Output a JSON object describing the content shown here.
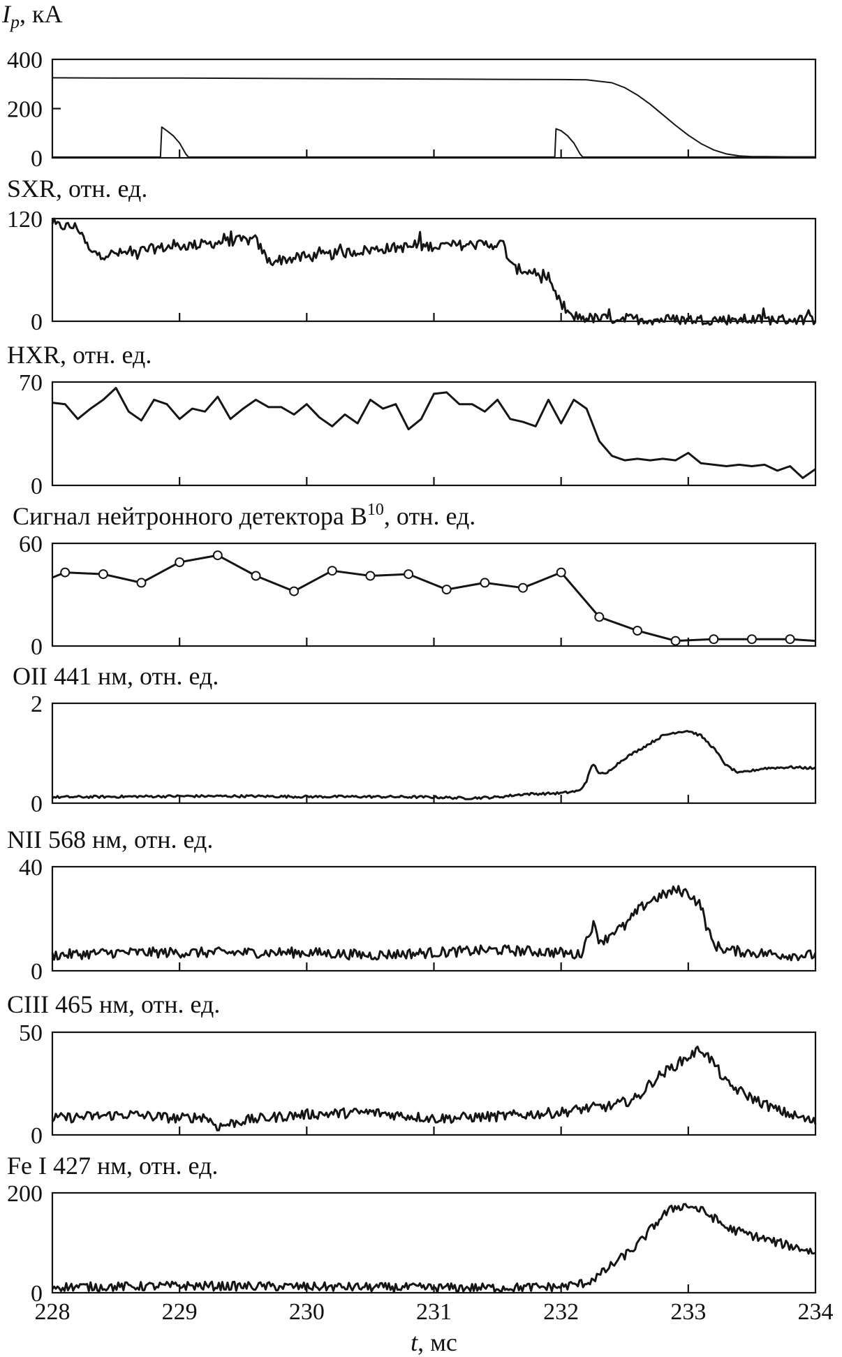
{
  "chart_data": [
    {
      "type": "line",
      "ylabel": "I",
      "ylabel_sub": "p",
      "ylabel_rest": ", кА",
      "ylim": [
        0,
        400
      ],
      "yticks": [
        "0",
        "200",
        "400"
      ],
      "xlim": [
        228,
        234
      ],
      "series": [
        {
          "x": [
            228.0,
            228.5,
            229.0,
            229.5,
            230.0,
            230.5,
            231.0,
            231.5,
            232.0,
            232.2,
            232.4,
            232.5,
            232.6,
            232.7,
            232.8,
            232.9,
            233.0,
            233.1,
            233.2,
            233.3,
            233.4,
            233.5,
            233.6,
            233.8,
            234.0
          ],
          "values": [
            325,
            324,
            324,
            323,
            322,
            321,
            320,
            319,
            318,
            317,
            305,
            285,
            255,
            218,
            175,
            132,
            92,
            58,
            32,
            16,
            8,
            5,
            5,
            4,
            4
          ]
        },
        {
          "x": [
            228.0,
            228.85,
            228.86,
            228.9,
            228.95,
            229.0,
            229.05,
            229.07,
            231.95,
            231.96,
            232.0,
            232.05,
            232.1,
            232.15,
            232.17,
            234.0
          ],
          "values": [
            3,
            3,
            125,
            110,
            90,
            60,
            15,
            3,
            3,
            118,
            110,
            90,
            60,
            15,
            3,
            3
          ]
        }
      ]
    },
    {
      "type": "line",
      "ylabel": "SXR, отн. ед.",
      "ylim": [
        0,
        120
      ],
      "yticks": [
        "0",
        "120"
      ],
      "xlim": [
        228,
        234
      ],
      "series": [
        {
          "x": [
            228.0,
            228.1,
            228.2,
            228.25,
            228.3,
            228.4,
            228.6,
            228.8,
            229.0,
            229.2,
            229.4,
            229.6,
            229.65,
            229.7,
            229.8,
            230.0,
            230.2,
            230.4,
            230.6,
            230.8,
            231.0,
            231.2,
            231.4,
            231.55,
            231.58,
            231.62,
            231.7,
            231.8,
            231.9,
            231.95,
            232.0,
            232.05,
            232.1,
            232.2,
            232.3,
            232.5,
            232.7,
            233.0,
            233.3,
            233.6,
            234.0
          ],
          "values": [
            112,
            111,
            110,
            95,
            80,
            78,
            80,
            85,
            88,
            90,
            94,
            95,
            82,
            70,
            72,
            75,
            78,
            82,
            85,
            87,
            88,
            89,
            90,
            90,
            75,
            62,
            60,
            56,
            45,
            32,
            20,
            8,
            6,
            4,
            3,
            3,
            2,
            2,
            2,
            2,
            2
          ]
        }
      ]
    },
    {
      "type": "line",
      "ylabel": "HXR, отн. ед.",
      "ylim": [
        0,
        70
      ],
      "yticks": [
        "0",
        "70"
      ],
      "xlim": [
        228,
        234
      ],
      "series": [
        {
          "x": [
            228.0,
            228.1,
            228.2,
            228.3,
            228.4,
            228.5,
            228.6,
            228.7,
            228.8,
            228.9,
            229.0,
            229.1,
            229.2,
            229.3,
            229.4,
            229.5,
            229.6,
            229.7,
            229.8,
            229.9,
            230.0,
            230.1,
            230.2,
            230.3,
            230.4,
            230.5,
            230.6,
            230.7,
            230.8,
            230.9,
            231.0,
            231.1,
            231.2,
            231.3,
            231.4,
            231.5,
            231.6,
            231.7,
            231.8,
            231.9,
            232.0,
            232.1,
            232.2,
            232.3,
            232.4,
            232.5,
            232.6,
            232.7,
            232.8,
            232.9,
            233.0,
            233.1,
            233.2,
            233.3,
            233.4,
            233.5,
            233.6,
            233.7,
            233.8,
            233.9,
            234.0
          ],
          "values": [
            56,
            55,
            45,
            52,
            58,
            66,
            50,
            44,
            58,
            55,
            45,
            52,
            50,
            60,
            45,
            52,
            58,
            53,
            53,
            48,
            55,
            46,
            40,
            48,
            42,
            58,
            52,
            55,
            38,
            45,
            62,
            63,
            55,
            55,
            50,
            58,
            45,
            43,
            40,
            58,
            42,
            58,
            52,
            30,
            20,
            17,
            18,
            17,
            18,
            17,
            22,
            15,
            14,
            13,
            14,
            13,
            14,
            10,
            13,
            5,
            11
          ]
        }
      ]
    },
    {
      "type": "line",
      "ylabel": "Сигнал нейтронного детектора B",
      "ylabel_sup": "10",
      "ylabel_rest": ", отн. ед.",
      "ylim": [
        0,
        60
      ],
      "yticks": [
        "0",
        "60"
      ],
      "xlim": [
        228,
        234
      ],
      "series": [
        {
          "x": [
            228.0,
            228.1,
            228.4,
            228.7,
            229.0,
            229.3,
            229.6,
            229.9,
            230.2,
            230.5,
            230.8,
            231.1,
            231.4,
            231.7,
            232.0,
            232.3,
            232.6,
            232.9,
            233.2,
            233.5,
            233.8,
            234.0
          ],
          "values": [
            40,
            43,
            42,
            37,
            49,
            53,
            41,
            32,
            44,
            41,
            42,
            33,
            37,
            34,
            43,
            17,
            9,
            3,
            4,
            4,
            4,
            3
          ],
          "markers": [
            false,
            true,
            true,
            true,
            true,
            true,
            true,
            true,
            true,
            true,
            true,
            true,
            true,
            true,
            true,
            true,
            true,
            true,
            true,
            true,
            true,
            false
          ]
        }
      ]
    },
    {
      "type": "line",
      "ylabel": "OII 441 нм, отн. ед.",
      "ylim": [
        0,
        2
      ],
      "yticks": [
        "0",
        "2"
      ],
      "xlim": [
        228,
        234
      ],
      "series": [
        {
          "x": [
            228.0,
            228.5,
            229.0,
            229.5,
            230.0,
            230.5,
            231.0,
            231.25,
            231.5,
            231.7,
            232.0,
            232.15,
            232.2,
            232.25,
            232.3,
            232.35,
            232.4,
            232.5,
            232.6,
            232.7,
            232.8,
            232.9,
            233.0,
            233.1,
            233.2,
            233.3,
            233.4,
            233.5,
            233.6,
            233.8,
            234.0
          ],
          "values": [
            0.12,
            0.13,
            0.14,
            0.14,
            0.13,
            0.13,
            0.12,
            0.1,
            0.12,
            0.18,
            0.2,
            0.25,
            0.45,
            0.8,
            0.6,
            0.58,
            0.7,
            0.9,
            1.05,
            1.2,
            1.35,
            1.42,
            1.45,
            1.35,
            1.1,
            0.75,
            0.6,
            0.65,
            0.7,
            0.72,
            0.7
          ]
        }
      ]
    },
    {
      "type": "line",
      "ylabel": "NII 568 нм, отн. ед.",
      "ylim": [
        0,
        40
      ],
      "yticks": [
        "0",
        "40"
      ],
      "xlim": [
        228,
        234
      ],
      "series": [
        {
          "x": [
            228.0,
            228.5,
            229.0,
            229.5,
            230.0,
            230.5,
            231.0,
            231.5,
            232.0,
            232.15,
            232.2,
            232.25,
            232.3,
            232.35,
            232.4,
            232.5,
            232.6,
            232.7,
            232.8,
            232.9,
            233.0,
            233.1,
            233.15,
            233.2,
            233.3,
            233.5,
            233.8,
            234.0
          ],
          "values": [
            6,
            7,
            7,
            7,
            7,
            6,
            7,
            8,
            7,
            6,
            12,
            18,
            12,
            12,
            15,
            17,
            23,
            27,
            29,
            31,
            30,
            25,
            16,
            10,
            8,
            7,
            6,
            6
          ]
        }
      ]
    },
    {
      "type": "line",
      "ylabel": "CIII 465 нм, отн. ед.",
      "ylim": [
        0,
        50
      ],
      "yticks": [
        "0",
        "50"
      ],
      "xlim": [
        228,
        234
      ],
      "series": [
        {
          "x": [
            228.0,
            228.3,
            228.6,
            229.0,
            229.2,
            229.3,
            229.5,
            229.8,
            230.0,
            230.5,
            231.0,
            231.5,
            232.0,
            232.2,
            232.4,
            232.6,
            232.7,
            232.8,
            232.9,
            233.0,
            233.1,
            233.2,
            233.3,
            233.5,
            233.7,
            234.0
          ],
          "values": [
            8,
            9,
            10,
            8,
            9,
            4,
            7,
            9,
            10,
            11,
            8,
            9,
            11,
            13,
            14,
            18,
            25,
            30,
            34,
            38,
            42,
            35,
            25,
            18,
            12,
            6
          ]
        }
      ]
    },
    {
      "type": "line",
      "ylabel": "Fe I 427 нм, отн. ед.",
      "ylim": [
        0,
        200
      ],
      "yticks": [
        "0",
        "200"
      ],
      "xticks": [
        "228",
        "229",
        "230",
        "231",
        "232",
        "233",
        "234"
      ],
      "xlabel_var": "t",
      "xlabel_rest": ", мс",
      "xlim": [
        228,
        234
      ],
      "series": [
        {
          "x": [
            228.0,
            228.5,
            229.0,
            229.5,
            230.0,
            230.5,
            231.0,
            231.5,
            232.0,
            232.2,
            232.3,
            232.4,
            232.5,
            232.6,
            232.7,
            232.8,
            232.9,
            233.0,
            233.1,
            233.2,
            233.3,
            233.5,
            233.7,
            233.9,
            234.0
          ],
          "values": [
            12,
            12,
            14,
            13,
            12,
            11,
            10,
            10,
            12,
            20,
            35,
            55,
            75,
            95,
            125,
            155,
            172,
            175,
            165,
            150,
            130,
            115,
            100,
            88,
            80
          ]
        }
      ]
    }
  ]
}
